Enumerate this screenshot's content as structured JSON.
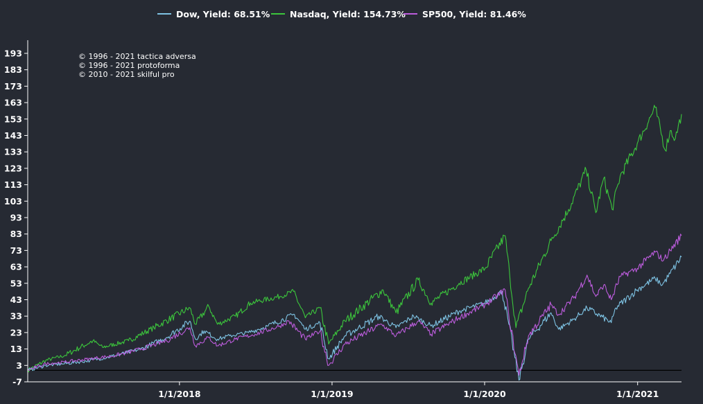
{
  "colors": {
    "background": "#262a33",
    "axis": "#ffffff",
    "zero_line": "#000000"
  },
  "copyright": [
    "© 1996 - 2021 tactica adversa",
    "© 1996 - 2021 protoforma",
    "© 2010 - 2021 skilful pro"
  ],
  "chart_data": {
    "type": "line",
    "title": "",
    "xlabel": "",
    "ylabel": "",
    "xlim": [
      "2017-01-03",
      "2021-04-16"
    ],
    "ylim": [
      -7,
      201
    ],
    "yticks": [
      -7,
      3,
      13,
      23,
      33,
      43,
      53,
      63,
      73,
      83,
      93,
      103,
      113,
      123,
      133,
      143,
      153,
      163,
      173,
      183,
      193
    ],
    "xticks": [
      "2018-01-01",
      "2019-01-01",
      "2020-01-01",
      "2021-01-01"
    ],
    "xtick_labels": [
      "1/1/2018",
      "1/1/2019",
      "1/1/2020",
      "1/1/2021"
    ],
    "baseline": 0,
    "legend_position": "top-center",
    "grid": false,
    "series": [
      {
        "name": "Dow, Yield: 68.51%",
        "color": "#7ec3e4",
        "points": [
          [
            "2017-01-03",
            0
          ],
          [
            "2017-02-15",
            3
          ],
          [
            "2017-04-01",
            4
          ],
          [
            "2017-06-01",
            6
          ],
          [
            "2017-08-01",
            9
          ],
          [
            "2017-10-01",
            13
          ],
          [
            "2017-12-01",
            20
          ],
          [
            "2018-01-26",
            30
          ],
          [
            "2018-02-08",
            19
          ],
          [
            "2018-03-01",
            24
          ],
          [
            "2018-04-02",
            19
          ],
          [
            "2018-05-01",
            21
          ],
          [
            "2018-06-15",
            23
          ],
          [
            "2018-08-01",
            27
          ],
          [
            "2018-10-03",
            34
          ],
          [
            "2018-10-29",
            25
          ],
          [
            "2018-12-03",
            29
          ],
          [
            "2018-12-24",
            7
          ],
          [
            "2019-02-01",
            21
          ],
          [
            "2019-04-23",
            33
          ],
          [
            "2019-06-03",
            26
          ],
          [
            "2019-07-15",
            33
          ],
          [
            "2019-08-26",
            27
          ],
          [
            "2019-11-01",
            36
          ],
          [
            "2020-01-02",
            41
          ],
          [
            "2020-02-12",
            48
          ],
          [
            "2020-02-28",
            28
          ],
          [
            "2020-03-23",
            -6
          ],
          [
            "2020-04-15",
            19
          ],
          [
            "2020-06-08",
            35
          ],
          [
            "2020-06-26",
            25
          ],
          [
            "2020-08-01",
            31
          ],
          [
            "2020-09-02",
            38
          ],
          [
            "2020-10-30",
            29
          ],
          [
            "2020-11-10",
            38
          ],
          [
            "2020-12-31",
            49
          ],
          [
            "2021-02-12",
            56
          ],
          [
            "2021-03-01",
            52
          ],
          [
            "2021-03-20",
            59
          ],
          [
            "2021-04-16",
            69
          ]
        ]
      },
      {
        "name": "Nasdaq, Yield: 154.73%",
        "color": "#3cc63c",
        "points": [
          [
            "2017-01-03",
            0
          ],
          [
            "2017-02-15",
            6
          ],
          [
            "2017-04-01",
            9
          ],
          [
            "2017-06-08",
            18
          ],
          [
            "2017-07-01",
            14
          ],
          [
            "2017-09-01",
            18
          ],
          [
            "2017-11-01",
            26
          ],
          [
            "2018-01-26",
            38
          ],
          [
            "2018-02-08",
            28
          ],
          [
            "2018-03-12",
            39
          ],
          [
            "2018-04-02",
            28
          ],
          [
            "2018-05-15",
            33
          ],
          [
            "2018-06-20",
            41
          ],
          [
            "2018-08-29",
            45
          ],
          [
            "2018-10-01",
            48
          ],
          [
            "2018-10-29",
            32
          ],
          [
            "2018-12-03",
            38
          ],
          [
            "2018-12-24",
            16
          ],
          [
            "2019-02-01",
            30
          ],
          [
            "2019-05-03",
            49
          ],
          [
            "2019-06-03",
            35
          ],
          [
            "2019-07-26",
            55
          ],
          [
            "2019-08-26",
            41
          ],
          [
            "2019-11-01",
            53
          ],
          [
            "2020-01-02",
            62
          ],
          [
            "2020-02-19",
            82
          ],
          [
            "2020-03-01",
            58
          ],
          [
            "2020-03-16",
            26
          ],
          [
            "2020-04-15",
            50
          ],
          [
            "2020-06-08",
            79
          ],
          [
            "2020-07-20",
            98
          ],
          [
            "2020-08-31",
            122
          ],
          [
            "2020-09-23",
            96
          ],
          [
            "2020-10-12",
            117
          ],
          [
            "2020-11-01",
            98
          ],
          [
            "2020-11-20",
            118
          ],
          [
            "2020-12-31",
            138
          ],
          [
            "2021-02-12",
            160
          ],
          [
            "2021-03-08",
            134
          ],
          [
            "2021-03-20",
            146
          ],
          [
            "2021-04-01",
            141
          ],
          [
            "2021-04-16",
            156
          ]
        ]
      },
      {
        "name": "SP500, Yield: 81.46%",
        "color": "#bc5cdc",
        "points": [
          [
            "2017-01-03",
            0
          ],
          [
            "2017-02-15",
            4
          ],
          [
            "2017-04-01",
            5
          ],
          [
            "2017-06-01",
            7
          ],
          [
            "2017-08-01",
            9
          ],
          [
            "2017-10-01",
            13
          ],
          [
            "2017-12-01",
            18
          ],
          [
            "2018-01-26",
            26
          ],
          [
            "2018-02-08",
            15
          ],
          [
            "2018-03-12",
            20
          ],
          [
            "2018-04-02",
            15
          ],
          [
            "2018-05-15",
            19
          ],
          [
            "2018-07-01",
            22
          ],
          [
            "2018-08-29",
            27
          ],
          [
            "2018-09-20",
            30
          ],
          [
            "2018-10-29",
            19
          ],
          [
            "2018-12-03",
            24
          ],
          [
            "2018-12-24",
            3
          ],
          [
            "2019-02-01",
            16
          ],
          [
            "2019-04-30",
            28
          ],
          [
            "2019-06-03",
            21
          ],
          [
            "2019-07-26",
            30
          ],
          [
            "2019-08-26",
            22
          ],
          [
            "2019-11-01",
            32
          ],
          [
            "2020-01-02",
            40
          ],
          [
            "2020-02-19",
            49
          ],
          [
            "2020-02-28",
            33
          ],
          [
            "2020-03-23",
            -3
          ],
          [
            "2020-04-15",
            21
          ],
          [
            "2020-06-08",
            40
          ],
          [
            "2020-06-26",
            34
          ],
          [
            "2020-08-01",
            44
          ],
          [
            "2020-09-02",
            58
          ],
          [
            "2020-09-23",
            45
          ],
          [
            "2020-10-12",
            52
          ],
          [
            "2020-10-30",
            43
          ],
          [
            "2020-11-20",
            57
          ],
          [
            "2020-12-31",
            62
          ],
          [
            "2021-02-12",
            72
          ],
          [
            "2021-03-04",
            67
          ],
          [
            "2021-03-20",
            73
          ],
          [
            "2021-04-16",
            82
          ]
        ]
      }
    ]
  }
}
